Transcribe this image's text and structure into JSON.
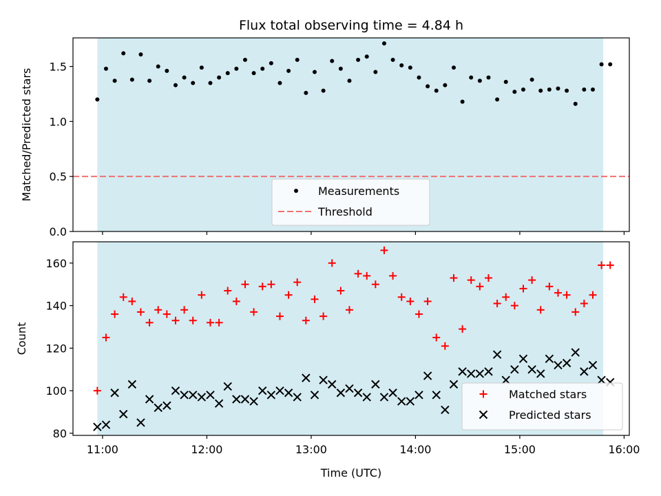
{
  "chart_data": [
    {
      "type": "scatter",
      "title": "Flux total observing time = 4.84 h",
      "xlabel": "",
      "ylabel": "Matched/Predicted stars",
      "ylim": [
        0,
        1.76
      ],
      "yticks": [
        0.0,
        0.5,
        1.0,
        1.5
      ],
      "ytick_labels": [
        "0.0",
        "0.5",
        "1.0",
        "1.5"
      ],
      "xlim": [
        "10:43",
        "16:03"
      ],
      "observing_window": [
        "10:57",
        "15:48"
      ],
      "legend": {
        "placement": "bottom-center"
      },
      "threshold": {
        "name": "Threshold",
        "value": 0.5,
        "color": "#f07070",
        "style": "dashed"
      },
      "series": [
        {
          "name": "Measurements",
          "color": "#000000",
          "marker": "dot",
          "x": [
            "10:57",
            "11:02",
            "11:07",
            "11:12",
            "11:17",
            "11:22",
            "11:27",
            "11:32",
            "11:37",
            "11:42",
            "11:47",
            "11:52",
            "11:57",
            "12:02",
            "12:07",
            "12:12",
            "12:17",
            "12:22",
            "12:27",
            "12:32",
            "12:37",
            "12:42",
            "12:47",
            "12:52",
            "12:57",
            "13:02",
            "13:07",
            "13:12",
            "13:17",
            "13:22",
            "13:27",
            "13:32",
            "13:37",
            "13:42",
            "13:47",
            "13:52",
            "13:57",
            "14:02",
            "14:07",
            "14:12",
            "14:17",
            "14:22",
            "14:27",
            "14:32",
            "14:37",
            "14:42",
            "14:47",
            "14:52",
            "14:57",
            "15:02",
            "15:07",
            "15:12",
            "15:17",
            "15:22",
            "15:27",
            "15:32",
            "15:37",
            "15:42",
            "15:47",
            "15:52"
          ],
          "values": [
            1.2,
            1.48,
            1.37,
            1.62,
            1.38,
            1.61,
            1.37,
            1.5,
            1.46,
            1.33,
            1.4,
            1.35,
            1.49,
            1.35,
            1.4,
            1.44,
            1.48,
            1.56,
            1.44,
            1.48,
            1.53,
            1.35,
            1.46,
            1.56,
            1.26,
            1.45,
            1.28,
            1.55,
            1.48,
            1.37,
            1.56,
            1.59,
            1.45,
            1.71,
            1.56,
            1.51,
            1.49,
            1.4,
            1.32,
            1.28,
            1.33,
            1.49,
            1.18,
            1.4,
            1.37,
            1.4,
            1.2,
            1.36,
            1.27,
            1.29,
            1.38,
            1.28,
            1.29,
            1.3,
            1.28,
            1.16,
            1.29,
            1.29,
            1.52,
            1.52
          ]
        }
      ]
    },
    {
      "type": "scatter",
      "title": "",
      "xlabel": "Time (UTC)",
      "ylabel": "Count",
      "ylim": [
        79,
        170
      ],
      "yticks": [
        80,
        100,
        120,
        140,
        160
      ],
      "ytick_labels": [
        "80",
        "100",
        "120",
        "140",
        "160"
      ],
      "xlim": [
        "10:43",
        "16:03"
      ],
      "xticks": [
        "11:00",
        "12:00",
        "13:00",
        "14:00",
        "15:00",
        "16:00"
      ],
      "xtick_labels": [
        "11:00",
        "12:00",
        "13:00",
        "14:00",
        "15:00",
        "16:00"
      ],
      "observing_window": [
        "10:57",
        "15:48"
      ],
      "legend": {
        "placement": "bottom-right"
      },
      "series": [
        {
          "name": "Matched stars",
          "color": "#ff0000",
          "marker": "plus",
          "x": [
            "10:57",
            "11:02",
            "11:07",
            "11:12",
            "11:17",
            "11:22",
            "11:27",
            "11:32",
            "11:37",
            "11:42",
            "11:47",
            "11:52",
            "11:57",
            "12:02",
            "12:07",
            "12:12",
            "12:17",
            "12:22",
            "12:27",
            "12:32",
            "12:37",
            "12:42",
            "12:47",
            "12:52",
            "12:57",
            "13:02",
            "13:07",
            "13:12",
            "13:17",
            "13:22",
            "13:27",
            "13:32",
            "13:37",
            "13:42",
            "13:47",
            "13:52",
            "13:57",
            "14:02",
            "14:07",
            "14:12",
            "14:17",
            "14:22",
            "14:27",
            "14:32",
            "14:37",
            "14:42",
            "14:47",
            "14:52",
            "14:57",
            "15:02",
            "15:07",
            "15:12",
            "15:17",
            "15:22",
            "15:27",
            "15:32",
            "15:37",
            "15:42",
            "15:47",
            "15:52"
          ],
          "values": [
            100,
            125,
            136,
            144,
            142,
            137,
            132,
            138,
            136,
            133,
            138,
            133,
            145,
            132,
            132,
            147,
            142,
            150,
            137,
            149,
            150,
            135,
            145,
            151,
            133,
            143,
            135,
            160,
            147,
            138,
            155,
            154,
            150,
            166,
            154,
            144,
            142,
            136,
            142,
            125,
            121,
            153,
            129,
            152,
            149,
            153,
            141,
            144,
            140,
            148,
            152,
            138,
            149,
            146,
            145,
            137,
            141,
            145,
            159,
            159
          ]
        },
        {
          "name": "Predicted stars",
          "color": "#000000",
          "marker": "x",
          "x": [
            "10:57",
            "11:02",
            "11:07",
            "11:12",
            "11:17",
            "11:22",
            "11:27",
            "11:32",
            "11:37",
            "11:42",
            "11:47",
            "11:52",
            "11:57",
            "12:02",
            "12:07",
            "12:12",
            "12:17",
            "12:22",
            "12:27",
            "12:32",
            "12:37",
            "12:42",
            "12:47",
            "12:52",
            "12:57",
            "13:02",
            "13:07",
            "13:12",
            "13:17",
            "13:22",
            "13:27",
            "13:32",
            "13:37",
            "13:42",
            "13:47",
            "13:52",
            "13:57",
            "14:02",
            "14:07",
            "14:12",
            "14:17",
            "14:22",
            "14:27",
            "14:32",
            "14:37",
            "14:42",
            "14:47",
            "14:52",
            "14:57",
            "15:02",
            "15:07",
            "15:12",
            "15:17",
            "15:22",
            "15:27",
            "15:32",
            "15:37",
            "15:42",
            "15:47",
            "15:52"
          ],
          "values": [
            83,
            84,
            99,
            89,
            103,
            85,
            96,
            92,
            93,
            100,
            98,
            98,
            97,
            98,
            94,
            102,
            96,
            96,
            95,
            100,
            98,
            100,
            99,
            97,
            106,
            98,
            105,
            103,
            99,
            101,
            99,
            97,
            103,
            97,
            99,
            95,
            95,
            98,
            107,
            98,
            91,
            103,
            109,
            108,
            108,
            109,
            117,
            105,
            110,
            115,
            110,
            108,
            115,
            112,
            113,
            118,
            109,
            112,
            105,
            104
          ]
        }
      ]
    }
  ]
}
